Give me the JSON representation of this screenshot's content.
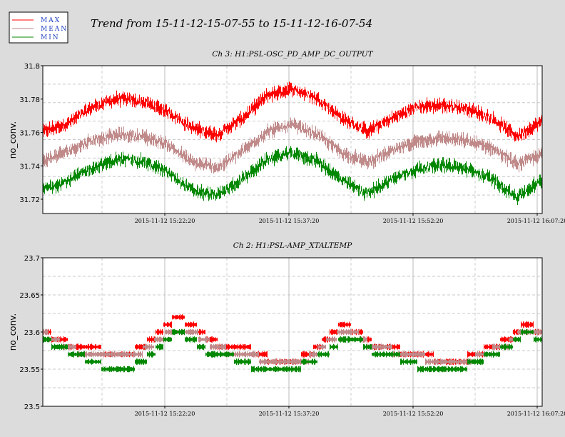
{
  "title": "Trend from 15-11-12-15-07-55 to 15-11-12-16-07-54",
  "legend": [
    {
      "name": "MAX",
      "color": "#ff0000"
    },
    {
      "name": "MEAN",
      "color": "#c08a8a"
    },
    {
      "name": "MIN",
      "color": "#008800"
    }
  ],
  "chart_data": [
    {
      "type": "line",
      "title": "Ch 3: H1:PSL-OSC_PD_AMP_DC_OUTPUT",
      "ylabel": "no_conv.",
      "xlabel": "",
      "ylim": [
        31.71,
        31.8
      ],
      "yticks": [
        "31.8",
        "31.78",
        "31.76",
        "31.74",
        "31.72"
      ],
      "xticks": [
        "2015-11-12 15:22:20",
        "2015-11-12 15:37:20",
        "2015-11-12 15:52:20",
        "2015-11-12 16:07:20"
      ],
      "grid": true,
      "series": [
        {
          "name": "MAX",
          "approx_values": [
            31.76,
            31.765,
            31.775,
            31.78,
            31.778,
            31.772,
            31.762,
            31.758,
            31.768,
            31.782,
            31.786,
            31.78,
            31.768,
            31.76,
            31.768,
            31.775,
            31.776,
            31.774,
            31.768,
            31.757,
            31.766
          ]
        },
        {
          "name": "MEAN",
          "approx_values": [
            31.742,
            31.748,
            31.755,
            31.758,
            31.757,
            31.752,
            31.741,
            31.738,
            31.748,
            31.76,
            31.764,
            31.758,
            31.747,
            31.741,
            31.748,
            31.754,
            31.756,
            31.754,
            31.75,
            31.74,
            31.746
          ]
        },
        {
          "name": "MIN",
          "approx_values": [
            31.725,
            31.73,
            31.738,
            31.743,
            31.742,
            31.735,
            31.724,
            31.721,
            31.731,
            31.743,
            31.747,
            31.742,
            31.73,
            31.722,
            31.731,
            31.737,
            31.74,
            31.737,
            31.731,
            31.72,
            31.73
          ]
        }
      ]
    },
    {
      "type": "line",
      "title": "Ch 2: H1:PSL-AMP_XTALTEMP",
      "ylabel": "no_conv.",
      "xlabel": "",
      "ylim": [
        23.5,
        23.7
      ],
      "yticks": [
        "23.7",
        "23.65",
        "23.6",
        "23.55",
        "23.5"
      ],
      "xticks": [
        "2015-11-12 15:22:20",
        "2015-11-12 15:37:20",
        "2015-11-12 15:52:20",
        "2015-11-12 16:07:20"
      ],
      "grid": true,
      "series": [
        {
          "name": "MAX",
          "approx_values": [
            23.6,
            23.59,
            23.58,
            23.58,
            23.57,
            23.57,
            23.58,
            23.6,
            23.62,
            23.61,
            23.59,
            23.58,
            23.58,
            23.57,
            23.56,
            23.56,
            23.57,
            23.59,
            23.61,
            23.6,
            23.58,
            23.58,
            23.57,
            23.57,
            23.56,
            23.56,
            23.57,
            23.58,
            23.59,
            23.61,
            23.6
          ]
        },
        {
          "name": "MEAN",
          "approx_values": [
            23.6,
            23.585,
            23.575,
            23.57,
            23.565,
            23.565,
            23.575,
            23.59,
            23.605,
            23.6,
            23.585,
            23.575,
            23.57,
            23.565,
            23.555,
            23.555,
            23.565,
            23.585,
            23.6,
            23.595,
            23.575,
            23.575,
            23.565,
            23.565,
            23.555,
            23.555,
            23.565,
            23.575,
            23.585,
            23.605,
            23.6
          ]
        },
        {
          "name": "MIN",
          "approx_values": [
            23.59,
            23.58,
            23.57,
            23.56,
            23.55,
            23.55,
            23.56,
            23.58,
            23.6,
            23.59,
            23.57,
            23.57,
            23.56,
            23.55,
            23.55,
            23.55,
            23.56,
            23.57,
            23.59,
            23.59,
            23.57,
            23.57,
            23.56,
            23.55,
            23.55,
            23.55,
            23.56,
            23.57,
            23.58,
            23.6,
            23.59
          ]
        }
      ]
    }
  ]
}
